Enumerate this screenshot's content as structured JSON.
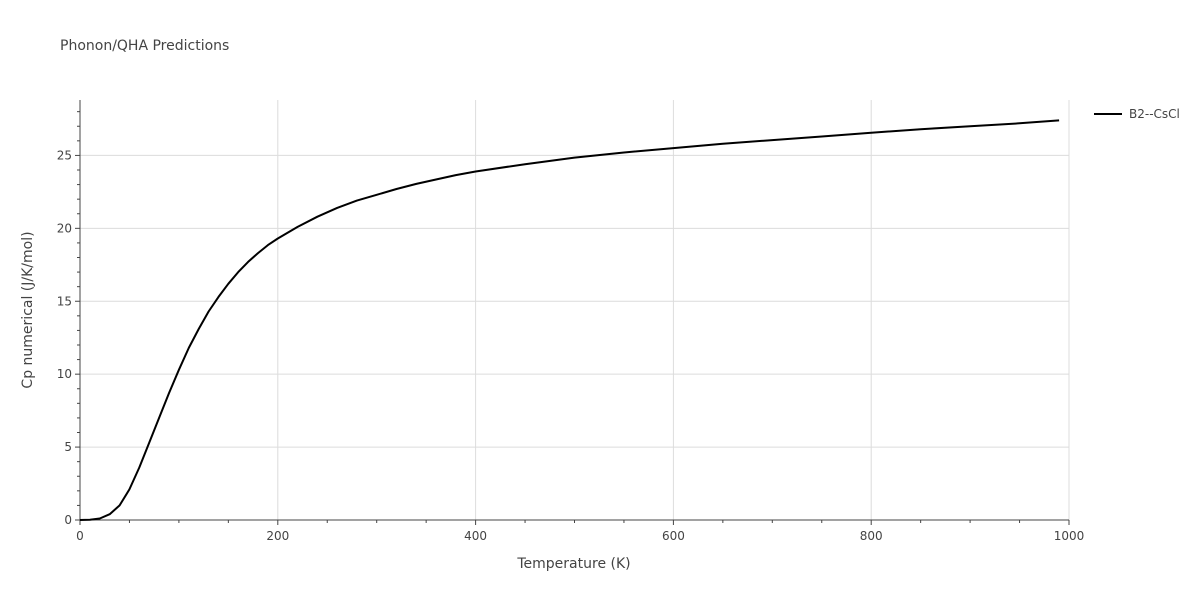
{
  "chart_data": {
    "type": "line",
    "title": "Phonon/QHA Predictions",
    "xlabel": "Temperature (K)",
    "ylabel": "Cp numerical (J/K/mol)",
    "xlim": [
      0,
      1000
    ],
    "ylim": [
      0,
      28.8
    ],
    "xticks": [
      0,
      200,
      400,
      600,
      800,
      1000
    ],
    "yticks": [
      0,
      5,
      10,
      15,
      20,
      25
    ],
    "grid": true,
    "legend_position": "top-right",
    "series": [
      {
        "name": "B2--CsCl",
        "color": "#000000",
        "x": [
          0,
          10,
          20,
          30,
          40,
          50,
          60,
          70,
          80,
          90,
          100,
          110,
          120,
          130,
          140,
          150,
          160,
          170,
          180,
          190,
          200,
          220,
          240,
          260,
          280,
          300,
          320,
          340,
          360,
          380,
          400,
          450,
          500,
          550,
          600,
          650,
          700,
          750,
          800,
          850,
          900,
          950,
          990
        ],
        "y": [
          0,
          0.02,
          0.1,
          0.4,
          1.0,
          2.1,
          3.6,
          5.3,
          7.0,
          8.7,
          10.3,
          11.8,
          13.1,
          14.3,
          15.3,
          16.2,
          17.0,
          17.7,
          18.3,
          18.85,
          19.3,
          20.1,
          20.8,
          21.4,
          21.9,
          22.3,
          22.7,
          23.05,
          23.35,
          23.65,
          23.9,
          24.4,
          24.85,
          25.2,
          25.5,
          25.8,
          26.05,
          26.3,
          26.55,
          26.8,
          27.0,
          27.2,
          27.4
        ]
      }
    ]
  }
}
